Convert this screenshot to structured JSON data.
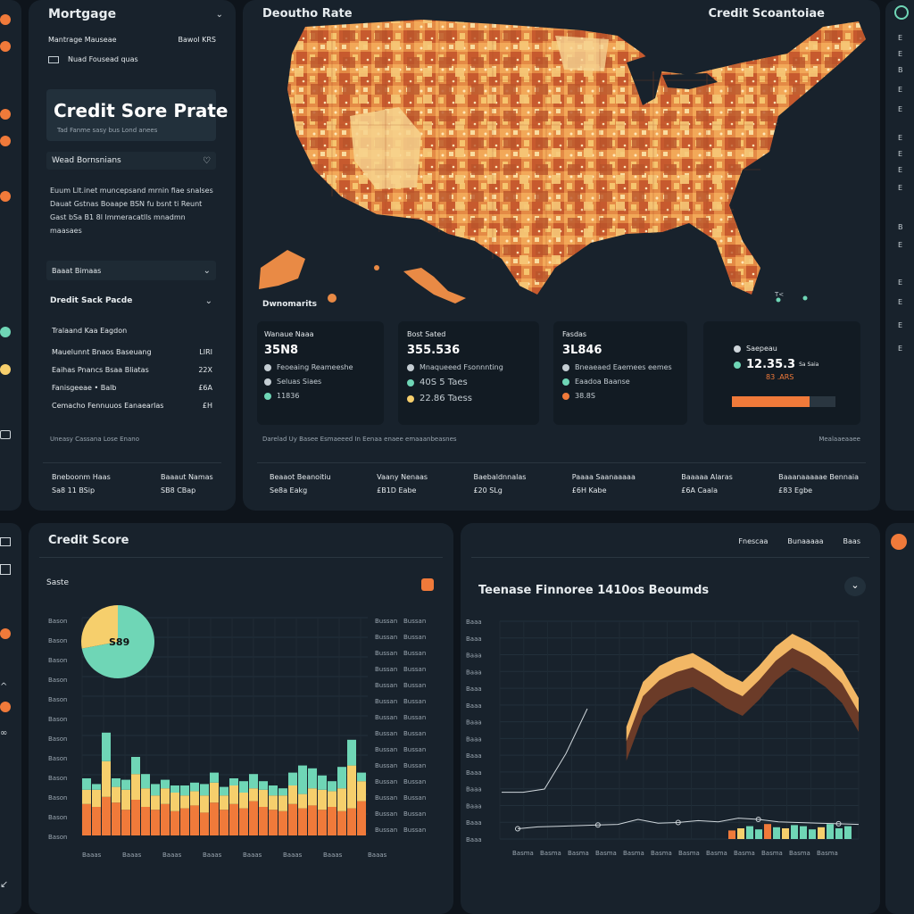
{
  "colors": {
    "accent": "#f07a3a",
    "teal": "#6fd6b6",
    "yellow": "#f6cf6c",
    "panel": "#18222c",
    "bg": "#0e141b"
  },
  "left_strip": {
    "icons": [
      "orange-circle-icon",
      "orange-circle-icon",
      "orange-circle-icon",
      "orange-circle-icon",
      "teal-circle-icon",
      "orange-circle-icon",
      "card-icon"
    ]
  },
  "mortgage_panel": {
    "title": "Mortgage",
    "line1_left": "Mantrage Mauseae",
    "line1_right": "Bawol KRS",
    "line2": "Nuad Fousead quas",
    "hero_title": "Credit Sore Prate",
    "hero_sub": "Tad Fanme sasy bus Lond anees",
    "section1": "Wead Bornsnians",
    "paragraph": "Euum Llt.inet muncepsand mrnin fiae snalses Dauat Gstnas Boaape BSN fu bsnt ti Reunt Gast bSa B1 8l lmmeracatlls mnadmn maasaes",
    "dropdown1": "Baaat Bimaas",
    "dropdown2": "Dredit Sack Pacde",
    "list_header": "Tralaand Kaa Eagdon",
    "list": [
      {
        "label": "Mauelunnt Bnaos Baseuang",
        "value": "LIRI"
      },
      {
        "label": "Eaihas Pnancs Bsaa Bliatas",
        "value": "22X"
      },
      {
        "label": "Fanisgeeae • Balb",
        "value": "£6A"
      },
      {
        "label": "Cemacho Fennuuos Eanaearlas",
        "value": "£H"
      }
    ],
    "footer_note": "Uneasy Cassana Lose Enano",
    "footer_cols": [
      {
        "label": "Bneboonm Haas",
        "value": "Sa8 11 BSip"
      },
      {
        "label": "Baaaut Namas",
        "value": "SB8 CBap"
      }
    ]
  },
  "map_panel": {
    "title": "Deoutho Rate",
    "title_right": "Credit Scoantoiae",
    "demo_label": "Dwnomarits",
    "cards": [
      {
        "head": "Wanaue Naaa",
        "value": "35N8",
        "rows": [
          {
            "text": "Feoeaing Reameeshe"
          },
          {
            "text": "Seluas Siaes"
          },
          {
            "text": "11836"
          }
        ]
      },
      {
        "head": "Bost Sated",
        "value": "355.536",
        "rows": [
          {
            "text": "Mnaqueeed Fsonnnting"
          },
          {
            "text": "40S 5 Taes"
          },
          {
            "text": "22.86 Taess"
          }
        ]
      },
      {
        "head": "Fasdas",
        "value": "3L846",
        "rows": [
          {
            "text": "Bneaeaed Eaemees eemes"
          },
          {
            "text": "Eaadoa Baanse"
          },
          {
            "text": "38.8S"
          }
        ]
      },
      {
        "head": "Saepeau",
        "value": "12.35.3",
        "sub_value": "83 .ARS",
        "progress": 0.75,
        "small": "Sa Saia"
      }
    ],
    "detail_left": "Darelad Uy Basee Esmaeeed In Eenaa enaee emaaanbeasnes",
    "detail_right": "Mealaaeaaee",
    "footer_cols": [
      {
        "label": "Beaaot Beanoitiu",
        "value": "Se8a Eakg"
      },
      {
        "label": "Vaany Nenaas",
        "value": "£B1D Eabe"
      },
      {
        "label": "Baebaldnnalas",
        "value": "£20 SLg"
      },
      {
        "label": "Paaaa Saanaaaaa",
        "value": "£6H Kabe"
      },
      {
        "label": "Baaaaa Alaras",
        "value": "£6A Caala"
      },
      {
        "label": "Baaanaaaaae Bennaia",
        "value": "£83 Egbe"
      }
    ]
  },
  "right_strip": {
    "items": [
      "E",
      "E",
      "B",
      "E",
      "E",
      "E",
      "E",
      "E",
      "E",
      "B",
      "E",
      "E",
      "E",
      "E",
      "E"
    ]
  },
  "credit_panel": {
    "title": "Credit Score",
    "sub": "Saste",
    "pie_label": "S89",
    "left_ticks": [
      "Bason",
      "Bason",
      "Bason",
      "Bason",
      "Bason",
      "Bason",
      "Bason",
      "Bason",
      "Bason",
      "Bason",
      "Bason",
      "Bason"
    ],
    "right_ticks": [
      "Bussan",
      "Bussan",
      "Bussan",
      "Bussan",
      "Bussan",
      "Bussan",
      "Bussan",
      "Bussan",
      "Bussan",
      "Bussan",
      "Bussan",
      "Bussan",
      "Bussan",
      "Bussan"
    ],
    "x_labels": [
      "Baaas",
      "Baaas",
      "Baaas",
      "Baaas",
      "Baaas",
      "Baaas",
      "Baaas"
    ],
    "x_label_right": "Baaas"
  },
  "trend_panel": {
    "top_links": [
      "Fnescaa",
      "Bunaaaaa",
      "Baas"
    ],
    "title": "Teenase Finnoree 1410os Beoumds",
    "y_ticks": [
      "Baaa",
      "Baaa",
      "Baaa",
      "Baaa",
      "Baaa",
      "Baaa",
      "Baaa",
      "Baaa",
      "Baaa",
      "Baaa",
      "Baaa",
      "Baaa",
      "Baaa",
      "Baaa"
    ],
    "x_labels": [
      "Basma",
      "Basma",
      "Basma",
      "Basma",
      "Basma",
      "Basma",
      "Basma",
      "Basma",
      "Basma",
      "Basma",
      "Basma",
      "Basma"
    ]
  },
  "chart_data": [
    {
      "type": "pie",
      "title": "",
      "values": [
        0.72,
        0.28
      ],
      "colors": [
        "#6fd6b6",
        "#f6cf6c"
      ],
      "label": "S89"
    },
    {
      "type": "bar",
      "title": "",
      "stacked": true,
      "series": [
        {
          "values": [
            22,
            20,
            27,
            23,
            18,
            25,
            20,
            18,
            22,
            17,
            19,
            21,
            16,
            23,
            18,
            22,
            19,
            24,
            20,
            18,
            17,
            22,
            19,
            21,
            18,
            20,
            17,
            19,
            24
          ]
        },
        {
          "values": [
            10,
            12,
            25,
            11,
            14,
            18,
            13,
            10,
            11,
            13,
            9,
            10,
            12,
            14,
            10,
            13,
            11,
            9,
            12,
            10,
            11,
            13,
            10,
            12,
            14,
            11,
            16,
            30,
            14
          ]
        },
        {
          "values": [
            8,
            4,
            20,
            6,
            7,
            12,
            10,
            8,
            6,
            5,
            7,
            6,
            8,
            7,
            6,
            5,
            8,
            10,
            6,
            7,
            5,
            9,
            20,
            14,
            10,
            7,
            15,
            18,
            6
          ]
        }
      ]
    },
    {
      "type": "line",
      "title": "Teenase Finnoree 1410os Beoumds",
      "series": [
        {
          "values": [
            0.18,
            0.18,
            0.2,
            0.42,
            0.7,
            0.8,
            0.85,
            0.88,
            0.82,
            0.75,
            0.7,
            0.8,
            0.92,
            1.0,
            0.95,
            0.88,
            0.78,
            0.6
          ]
        },
        {
          "values": [
            0.05,
            0.08,
            0.09,
            0.1,
            0.11,
            0.12,
            0.2,
            0.14,
            0.15,
            0.18,
            0.16,
            0.22,
            0.2,
            0.16,
            0.15,
            0.14,
            0.13,
            0.12
          ]
        }
      ],
      "bar_values": [
        0.08,
        0.1,
        0.12,
        0.09,
        0.14,
        0.11,
        0.1,
        0.13,
        0.12,
        0.09,
        0.11,
        0.14,
        0.1,
        0.12
      ]
    }
  ]
}
